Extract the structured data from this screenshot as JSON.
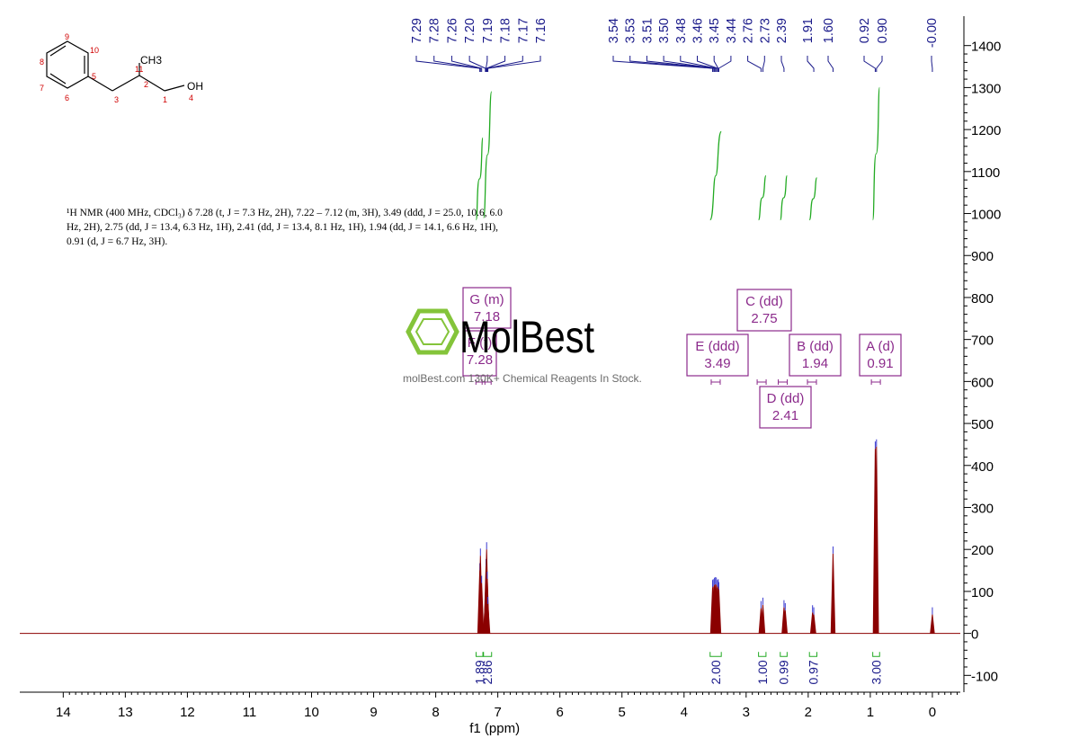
{
  "chart_data": {
    "type": "line",
    "xlabel": "f1 (ppm)",
    "xlim": [
      14.7,
      -0.45
    ],
    "x_ticks": [
      "14",
      "13",
      "12",
      "11",
      "10",
      "9",
      "8",
      "7",
      "6",
      "5",
      "4",
      "3",
      "2",
      "1",
      "0"
    ],
    "ylim": [
      -140,
      1470
    ],
    "y_ticks": [
      "1400",
      "1300",
      "1200",
      "1100",
      "1000",
      "900",
      "800",
      "700",
      "600",
      "500",
      "400",
      "300",
      "200",
      "100",
      "0",
      "-100"
    ],
    "series": [
      {
        "kind": "spectrum",
        "color": "#8b0000",
        "peaks": [
          {
            "x": 7.29,
            "y": 150
          },
          {
            "x": 7.28,
            "y": 185
          },
          {
            "x": 7.26,
            "y": 120
          },
          {
            "x": 7.2,
            "y": 80
          },
          {
            "x": 7.19,
            "y": 160
          },
          {
            "x": 7.18,
            "y": 200
          },
          {
            "x": 7.17,
            "y": 130
          },
          {
            "x": 7.16,
            "y": 70
          },
          {
            "x": 3.54,
            "y": 110
          },
          {
            "x": 3.53,
            "y": 112
          },
          {
            "x": 3.51,
            "y": 115
          },
          {
            "x": 3.5,
            "y": 117
          },
          {
            "x": 3.48,
            "y": 116
          },
          {
            "x": 3.46,
            "y": 110
          },
          {
            "x": 3.45,
            "y": 112
          },
          {
            "x": 3.44,
            "y": 105
          },
          {
            "x": 2.76,
            "y": 60
          },
          {
            "x": 2.73,
            "y": 68
          },
          {
            "x": 2.39,
            "y": 62
          },
          {
            "x": 2.37,
            "y": 55
          },
          {
            "x": 1.93,
            "y": 50
          },
          {
            "x": 1.91,
            "y": 45
          },
          {
            "x": 1.6,
            "y": 190
          },
          {
            "x": 0.92,
            "y": 440
          },
          {
            "x": 0.9,
            "y": 445
          },
          {
            "x": -0.0,
            "y": 45
          }
        ]
      }
    ],
    "peak_labels": [
      {
        "group": "left",
        "labels": [
          "7.29",
          "7.28",
          "7.26",
          "7.20",
          "7.19",
          "7.18",
          "7.17",
          "7.16"
        ]
      },
      {
        "group": "mid",
        "labels": [
          "3.54",
          "3.53",
          "3.51",
          "3.50",
          "3.48",
          "3.46",
          "3.45",
          "3.44",
          "2.76",
          "2.73",
          "2.39"
        ]
      },
      {
        "group": "right",
        "labels": [
          "1.91",
          "1.60",
          "0.92",
          "0.90",
          "-0.00"
        ]
      }
    ],
    "integrals": [
      {
        "from": 7.35,
        "to": 7.24,
        "value": "1.89",
        "y_start": 985,
        "y_end": 1180
      },
      {
        "from": 7.23,
        "to": 7.1,
        "value": "2.86",
        "y_start": 990,
        "y_end": 1290
      },
      {
        "from": 3.58,
        "to": 3.4,
        "value": "2.00",
        "y_start": 985,
        "y_end": 1195
      },
      {
        "from": 2.8,
        "to": 2.68,
        "value": "1.00",
        "y_start": 985,
        "y_end": 1090
      },
      {
        "from": 2.45,
        "to": 2.34,
        "value": "0.99",
        "y_start": 985,
        "y_end": 1090
      },
      {
        "from": 1.98,
        "to": 1.86,
        "value": "0.97",
        "y_start": 985,
        "y_end": 1085
      },
      {
        "from": 0.96,
        "to": 0.85,
        "value": "3.00",
        "y_start": 985,
        "y_end": 1300
      }
    ],
    "multiplets": [
      {
        "letter": "G (m)",
        "shift": "7.18"
      },
      {
        "letter": "F (t)",
        "shift": "7.28"
      },
      {
        "letter": "E (ddd)",
        "shift": "3.49"
      },
      {
        "letter": "C (dd)",
        "shift": "2.75"
      },
      {
        "letter": "D (dd)",
        "shift": "2.41"
      },
      {
        "letter": "B (dd)",
        "shift": "1.94"
      },
      {
        "letter": "A (d)",
        "shift": "0.91"
      }
    ]
  },
  "molecule": {
    "atoms": [
      "CH3",
      "OH",
      "11",
      "2",
      "3",
      "1",
      "4",
      "5",
      "6",
      "7",
      "8",
      "9",
      "10"
    ]
  },
  "description": {
    "line1": "¹H NMR (400 MHz, CDCl₃) δ 7.28 (t, J = 7.3 Hz, 2H), 7.22 – 7.12 (m, 3H), 3.49 (ddd, J = 25.0, 10.6, 6.0",
    "line2": "Hz, 2H), 2.75 (dd, J = 13.4, 6.3 Hz, 1H), 2.41 (dd, J = 13.4, 8.1 Hz, 1H), 1.94 (dd, J = 14.1, 6.6 Hz, 1H),",
    "line3": "0.91 (d, J = 6.7 Hz, 3H)."
  },
  "watermark": {
    "brand": "MolBest",
    "tagline": "molBest.com 130K+ Chemical Reagents In Stock."
  }
}
